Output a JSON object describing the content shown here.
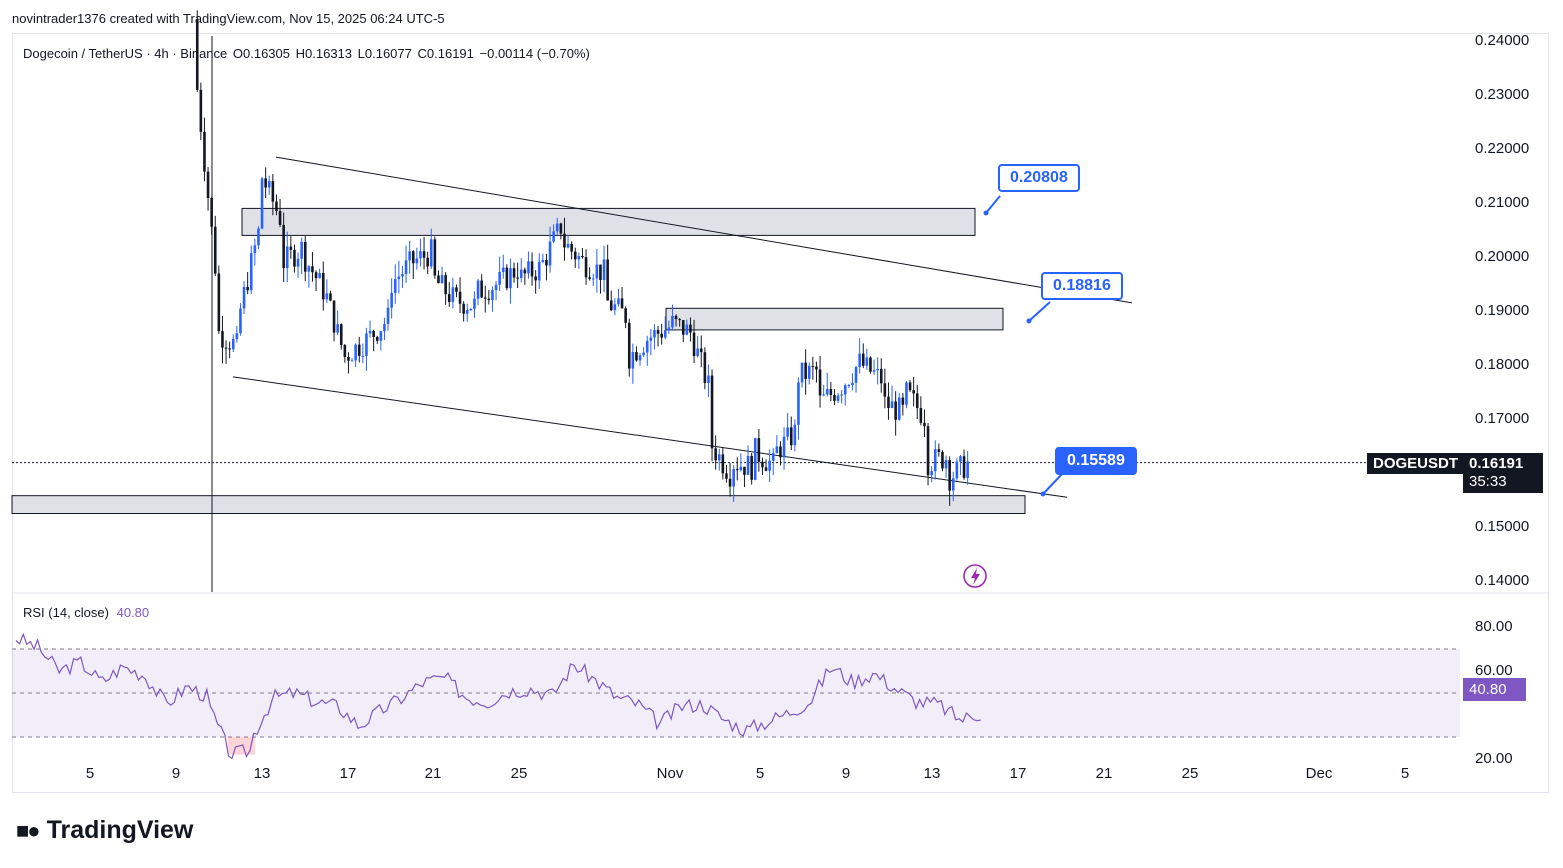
{
  "credit": "novintrader1376 created with TradingView.com, Nov 15, 2025 06:24 UTC-5",
  "header": {
    "symbol": "Dogecoin / TetherUS · 4h · Binance",
    "open": "O0.16305",
    "high": "H0.16313",
    "low": "L0.16077",
    "close": "C0.16191",
    "change": "−0.00114 (−0.70%)"
  },
  "price_axis": [
    "0.24000",
    "0.23000",
    "0.22000",
    "0.21000",
    "0.20000",
    "0.19000",
    "0.18000",
    "0.17000",
    "0.16000",
    "0.15000",
    "0.14000"
  ],
  "rsi_axis": [
    "80.00",
    "60.00",
    "40.00",
    "20.00"
  ],
  "x_axis": [
    "5",
    "9",
    "13",
    "17",
    "21",
    "25",
    "Nov",
    "5",
    "9",
    "13",
    "17",
    "21",
    "25",
    "Dec",
    "5"
  ],
  "annotations": {
    "level_1": "0.20808",
    "level_2": "0.18816",
    "level_3": "0.15589"
  },
  "badges": {
    "symbol": "DOGEUSDT",
    "last_price": "0.16191",
    "countdown": "35:33",
    "rsi_value": "40.80"
  },
  "rsi_indicator": {
    "label": "RSI (14, close)",
    "value": "40.80"
  },
  "logo": "TradingView",
  "colors": {
    "up": "#2962ff",
    "down": "#131722",
    "rsi": "#7e57c2",
    "accent": "#2962ff"
  },
  "chart_data": {
    "type": "candlestick",
    "title": "Dogecoin / TetherUS · 4h · Binance",
    "ylim": [
      0.14,
      0.24
    ],
    "rsi_ylim": [
      20,
      80
    ],
    "zones": [
      {
        "low": 0.204,
        "high": 0.209
      },
      {
        "low": 0.1865,
        "high": 0.1905
      },
      {
        "low": 0.1525,
        "high": 0.1558
      }
    ],
    "trendlines": [
      {
        "from": [
          "Oct 13",
          0.2185
        ],
        "to": [
          "Nov 19",
          0.1915
        ]
      },
      {
        "from": [
          "Oct 12",
          0.1778
        ],
        "to": [
          "Nov 19",
          0.1555
        ]
      }
    ],
    "price_path": [
      [
        "Oct 10",
        0.244
      ],
      [
        "Oct 10",
        0.231
      ],
      [
        "Oct 11",
        0.192
      ],
      [
        "Oct 11",
        0.186
      ],
      [
        "Oct 12",
        0.183
      ],
      [
        "Oct 12",
        0.19
      ],
      [
        "Oct 13",
        0.207
      ],
      [
        "Oct 13",
        0.215
      ],
      [
        "Oct 14",
        0.206
      ],
      [
        "Oct 14",
        0.199
      ],
      [
        "Oct 15",
        0.202
      ],
      [
        "Oct 15",
        0.2
      ],
      [
        "Oct 16",
        0.193
      ],
      [
        "Oct 17",
        0.18
      ],
      [
        "Oct 17",
        0.182
      ],
      [
        "Oct 18",
        0.185
      ],
      [
        "Oct 19",
        0.189
      ],
      [
        "Oct 19",
        0.195
      ],
      [
        "Oct 20",
        0.199
      ],
      [
        "Oct 21",
        0.201
      ],
      [
        "Oct 21",
        0.196
      ],
      [
        "Oct 22",
        0.192
      ],
      [
        "Oct 23",
        0.191
      ],
      [
        "Oct 23",
        0.1935
      ],
      [
        "Oct 24",
        0.195
      ],
      [
        "Oct 25",
        0.198
      ],
      [
        "Oct 25",
        0.196
      ],
      [
        "Oct 26",
        0.198
      ],
      [
        "Oct 27",
        0.206
      ],
      [
        "Oct 27",
        0.203
      ],
      [
        "Oct 28",
        0.199
      ],
      [
        "Oct 29",
        0.197
      ],
      [
        "Oct 29",
        0.192
      ],
      [
        "Oct 30",
        0.189
      ],
      [
        "Oct 30",
        0.181
      ],
      [
        "Oct 31",
        0.185
      ],
      [
        "Nov 1",
        0.187
      ],
      [
        "Nov 1",
        0.188
      ],
      [
        "Nov 2",
        0.186
      ],
      [
        "Nov 3",
        0.174
      ],
      [
        "Nov 3",
        0.165
      ],
      [
        "Nov 4",
        0.159
      ],
      [
        "Nov 4",
        0.162
      ],
      [
        "Nov 5",
        0.161
      ],
      [
        "Nov 5",
        0.164
      ],
      [
        "Nov 6",
        0.161
      ],
      [
        "Nov 6",
        0.164
      ],
      [
        "Nov 7",
        0.168
      ],
      [
        "Nov 7",
        0.178
      ],
      [
        "Nov 8",
        0.179
      ],
      [
        "Nov 8",
        0.173
      ],
      [
        "Nov 9",
        0.176
      ],
      [
        "Nov 10",
        0.181
      ],
      [
        "Nov 10",
        0.18
      ],
      [
        "Nov 11",
        0.177
      ],
      [
        "Nov 11",
        0.173
      ],
      [
        "Nov 12",
        0.171
      ],
      [
        "Nov 12",
        0.175
      ],
      [
        "Nov 13",
        0.17
      ],
      [
        "Nov 13",
        0.162
      ],
      [
        "Nov 14",
        0.163
      ],
      [
        "Nov 14",
        0.159
      ],
      [
        "Nov 15",
        0.162
      ]
    ],
    "rsi_path": [
      [
        "Oct 1",
        75
      ],
      [
        "Oct 2",
        71
      ],
      [
        "Oct 3",
        60
      ],
      [
        "Oct 4",
        64
      ],
      [
        "Oct 5",
        55
      ],
      [
        "Oct 6",
        62
      ],
      [
        "Oct 7",
        58
      ],
      [
        "Oct 8",
        45
      ],
      [
        "Oct 9",
        53
      ],
      [
        "Oct 10",
        48
      ],
      [
        "Oct 10",
        44
      ],
      [
        "Oct 11",
        22
      ],
      [
        "Oct 12",
        24
      ],
      [
        "Oct 12",
        30
      ],
      [
        "Oct 13",
        48
      ],
      [
        "Oct 14",
        50
      ],
      [
        "Oct 15",
        46
      ],
      [
        "Oct 16",
        44
      ],
      [
        "Oct 17",
        35
      ],
      [
        "Oct 18",
        42
      ],
      [
        "Oct 19",
        48
      ],
      [
        "Oct 20",
        55
      ],
      [
        "Oct 21",
        57
      ],
      [
        "Oct 22",
        48
      ],
      [
        "Oct 23",
        46
      ],
      [
        "Oct 24",
        51
      ],
      [
        "Oct 25",
        52
      ],
      [
        "Oct 26",
        49
      ],
      [
        "Oct 27",
        63
      ],
      [
        "Oct 28",
        56
      ],
      [
        "Oct 29",
        48
      ],
      [
        "Oct 30",
        45
      ],
      [
        "Oct 31",
        36
      ],
      [
        "Nov 1",
        44
      ],
      [
        "Nov 2",
        45
      ],
      [
        "Nov 3",
        38
      ],
      [
        "Nov 4",
        33
      ],
      [
        "Nov 5",
        37
      ],
      [
        "Nov 6",
        41
      ],
      [
        "Nov 7",
        46
      ],
      [
        "Nov 8",
        62
      ],
      [
        "Nov 9",
        55
      ],
      [
        "Nov 10",
        59
      ],
      [
        "Nov 11",
        52
      ],
      [
        "Nov 12",
        46
      ],
      [
        "Nov 13",
        45
      ],
      [
        "Nov 14",
        38
      ],
      [
        "Nov 15",
        40.8
      ]
    ]
  }
}
